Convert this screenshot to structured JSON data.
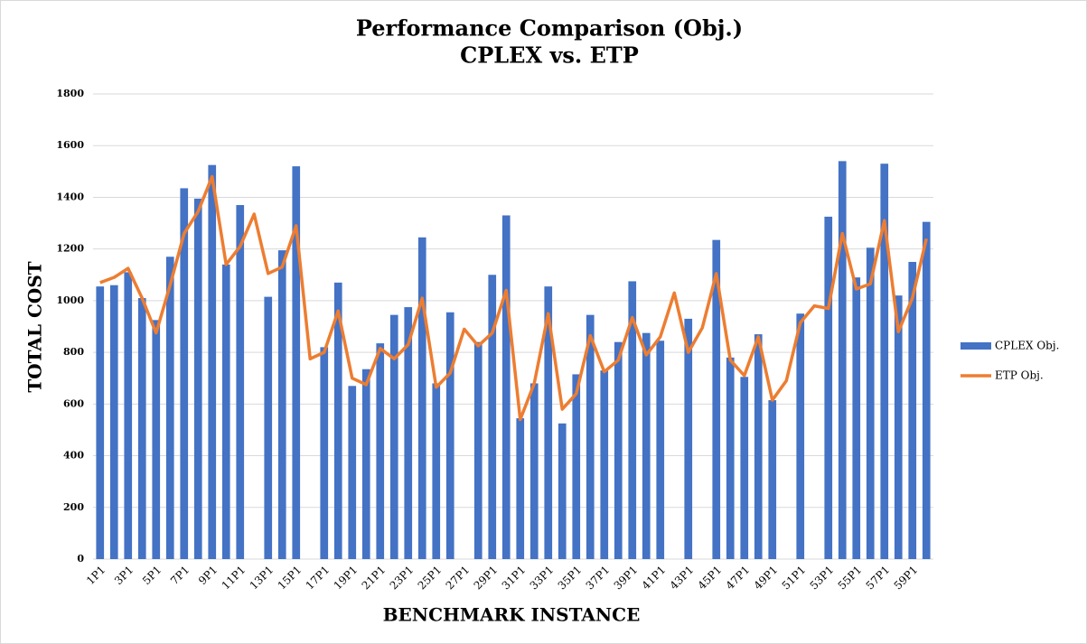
{
  "chart_data": {
    "type": "bar",
    "title": [
      "Performance Comparison (Obj.)",
      "CPLEX vs. ETP"
    ],
    "x_label": "BENCHMARK INSTANCE",
    "y_label": "TOTAL COST",
    "categories": [
      "1P1",
      null,
      "3P1",
      null,
      "5P1",
      null,
      "7P1",
      null,
      "9P1",
      null,
      "11P1",
      null,
      "13P1",
      null,
      "15P1",
      null,
      "17P1",
      null,
      "19P1",
      null,
      "21P1",
      null,
      "23P1",
      null,
      "25P1",
      null,
      "27P1",
      null,
      "29P1",
      null,
      "31P1",
      null,
      "33P1",
      null,
      "35P1",
      null,
      "37P1",
      null,
      "39P1",
      null,
      "41P1",
      null,
      "43P1",
      null,
      "45P1",
      null,
      "47P1",
      null,
      "49P1",
      null,
      "51P1",
      null,
      "53P1",
      null,
      "55P1",
      null,
      "57P1",
      null,
      "59P1",
      null
    ],
    "series": [
      {
        "name": "CPLEX Obj.",
        "type": "bar",
        "color": "#4472c4",
        "values": [
          1055,
          1060,
          1110,
          1010,
          925,
          1170,
          1435,
          1395,
          1525,
          1140,
          1370,
          null,
          1015,
          1195,
          1520,
          null,
          820,
          1070,
          670,
          735,
          835,
          945,
          975,
          1245,
          680,
          955,
          null,
          840,
          1100,
          1330,
          545,
          680,
          1055,
          525,
          715,
          945,
          730,
          840,
          1075,
          875,
          845,
          null,
          930,
          null,
          1235,
          780,
          705,
          870,
          615,
          null,
          950,
          null,
          1325,
          1540,
          1090,
          1205,
          1530,
          1020,
          1150,
          1305
        ]
      },
      {
        "name": "ETP Obj.",
        "type": "line",
        "color": "#ed7d31",
        "values": [
          1070,
          1090,
          1125,
          1010,
          875,
          1060,
          1260,
          1345,
          1480,
          1140,
          1210,
          1335,
          1105,
          1130,
          1290,
          775,
          800,
          960,
          700,
          675,
          815,
          775,
          830,
          1010,
          665,
          720,
          890,
          825,
          875,
          1040,
          540,
          680,
          950,
          580,
          640,
          865,
          725,
          770,
          935,
          790,
          860,
          1030,
          800,
          895,
          1105,
          770,
          710,
          860,
          615,
          690,
          915,
          980,
          970,
          1260,
          1045,
          1065,
          1310,
          880,
          1010,
          1240
        ]
      }
    ],
    "ylim": [
      0,
      1800
    ],
    "yticks": [
      0,
      200,
      400,
      600,
      800,
      1000,
      1200,
      1400,
      1600,
      1800
    ],
    "grid": true,
    "legend": "right"
  }
}
